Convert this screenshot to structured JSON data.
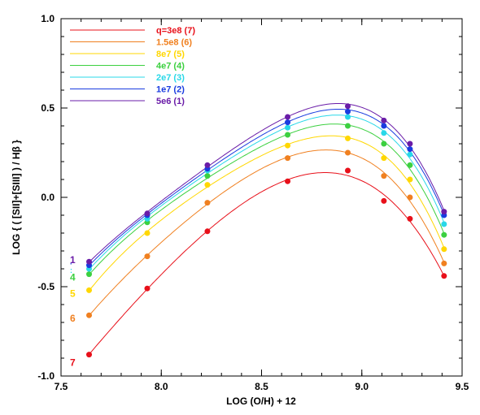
{
  "chart_data": {
    "type": "line",
    "title": "",
    "xlabel": "LOG (O/H) + 12",
    "ylabel": "LOG { ( [SII]+[SIII] ) / Hβ }",
    "xlim": [
      7.5,
      9.5
    ],
    "ylim": [
      -1.0,
      1.0
    ],
    "xticks": [
      7.5,
      8.0,
      8.5,
      9.0,
      9.5
    ],
    "xtick_labels": [
      "7.5",
      "8.0",
      "8.5",
      "9.0",
      "9.5"
    ],
    "yticks": [
      -1.0,
      -0.5,
      0.0,
      0.5,
      1.0
    ],
    "ytick_labels": [
      "-1.0",
      "-0.5",
      "0.0",
      "0.5",
      "1.0"
    ],
    "grid": false,
    "legend_position": "top-left",
    "x": [
      7.64,
      7.93,
      8.23,
      8.63,
      8.93,
      9.11,
      9.24,
      9.41
    ],
    "series": [
      {
        "name": "q=3e8 (7)",
        "end_label": "7",
        "color": "#e8101a",
        "values": [
          -0.88,
          -0.51,
          -0.19,
          0.09,
          0.15,
          -0.02,
          -0.12,
          -0.44
        ],
        "curve": {
          "peak_x": 8.81,
          "peak_y": 0.14
        }
      },
      {
        "name": "1.5e8 (6)",
        "end_label": "6",
        "color": "#f08020",
        "values": [
          -0.66,
          -0.33,
          -0.03,
          0.22,
          0.25,
          0.12,
          0.0,
          -0.37
        ],
        "curve": {
          "peak_x": 8.81,
          "peak_y": 0.27
        }
      },
      {
        "name": "8e7 (5)",
        "end_label": "5",
        "color": "#ffd700",
        "values": [
          -0.52,
          -0.2,
          0.07,
          0.29,
          0.33,
          0.22,
          0.1,
          -0.29
        ],
        "curve": {
          "peak_x": 8.83,
          "peak_y": 0.35
        }
      },
      {
        "name": "4e7 (4)",
        "end_label": "4",
        "color": "#3cd040",
        "values": [
          -0.43,
          -0.14,
          0.12,
          0.35,
          0.4,
          0.3,
          0.18,
          -0.21
        ],
        "curve": {
          "peak_x": 8.85,
          "peak_y": 0.41
        }
      },
      {
        "name": "2e7 (3)",
        "end_label": "3",
        "color": "#28d8e8",
        "values": [
          -0.4,
          -0.12,
          0.15,
          0.39,
          0.45,
          0.36,
          0.24,
          -0.15
        ],
        "curve": {
          "peak_x": 8.87,
          "peak_y": 0.46
        }
      },
      {
        "name": "1e7 (2)",
        "end_label": "2",
        "color": "#1a3ce0",
        "values": [
          -0.38,
          -0.1,
          0.16,
          0.42,
          0.48,
          0.4,
          0.27,
          -0.1
        ],
        "curve": {
          "peak_x": 8.89,
          "peak_y": 0.5
        }
      },
      {
        "name": "5e6 (1)",
        "end_label": "1",
        "color": "#6a1ca8",
        "values": [
          -0.36,
          -0.09,
          0.18,
          0.45,
          0.51,
          0.43,
          0.3,
          -0.08
        ],
        "curve": {
          "peak_x": 8.89,
          "peak_y": 0.53
        }
      }
    ]
  }
}
